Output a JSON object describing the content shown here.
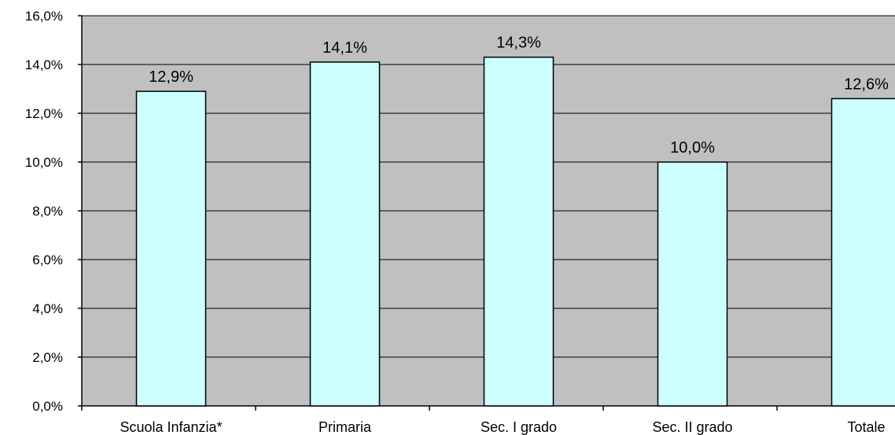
{
  "chart_data": {
    "type": "bar",
    "categories": [
      "Scuola Infanzia*",
      "Primaria",
      "Sec. I grado",
      "Sec. II grado",
      "Totale"
    ],
    "values": [
      12.9,
      14.1,
      14.3,
      10.0,
      12.6
    ],
    "data_labels": [
      "12,9%",
      "14,1%",
      "14,3%",
      "10,0%",
      "12,6%"
    ],
    "ylim": [
      0,
      16
    ],
    "y_ticks": [
      0,
      2,
      4,
      6,
      8,
      10,
      12,
      14,
      16
    ],
    "y_tick_labels": [
      "0,0%",
      "2,0%",
      "4,0%",
      "6,0%",
      "8,0%",
      "10,0%",
      "12,0%",
      "14,0%",
      "16,0%"
    ],
    "grid": true,
    "legend": "none",
    "colors": {
      "plot_background": "#c0c0c0",
      "bar_fill": "#ccffff",
      "bar_stroke": "#000000",
      "grid": "#000000"
    }
  }
}
